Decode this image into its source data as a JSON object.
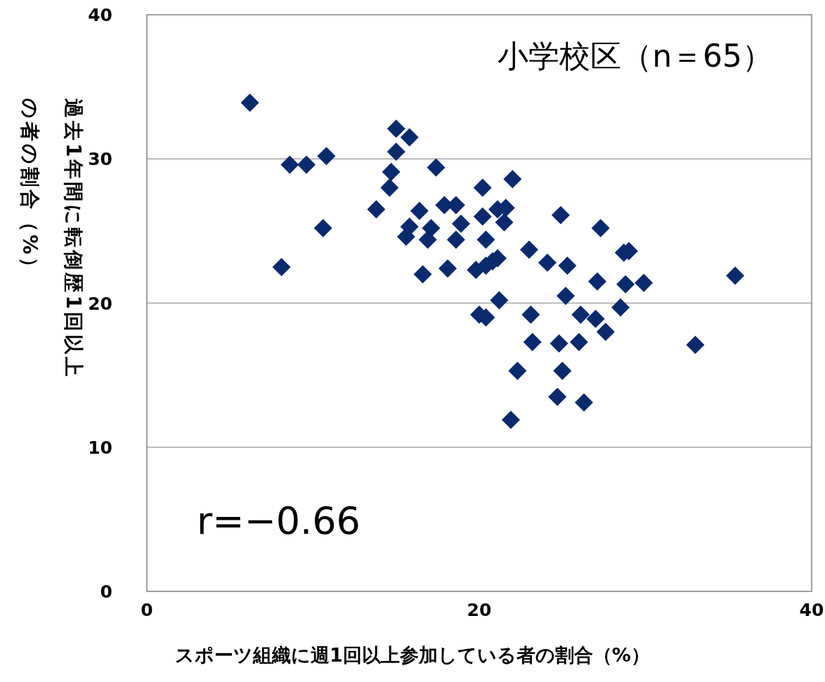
{
  "chart_data": {
    "type": "scatter",
    "xlabel": "スポーツ組織に週1回以上参加している者の割合（%）",
    "ylabel": "過去1年間に転倒歴1回以上の者の割合（%）",
    "annotations": [
      "小学校区（n＝65）",
      "r=−0.66"
    ],
    "xlim": [
      0,
      40
    ],
    "xticks": [
      0,
      20,
      40
    ],
    "ylim": [
      0,
      40
    ],
    "yticks": [
      0,
      10,
      20,
      30,
      40
    ],
    "grid": "y",
    "marker": "diamond",
    "series": [
      {
        "color": "#0a2a6e",
        "x": [
          6.2,
          8.6,
          9.6,
          10.8,
          10.6,
          8.1,
          13.8,
          15.0,
          15.8,
          15.0,
          14.7,
          14.6,
          17.4,
          16.4,
          15.8,
          15.6,
          16.9,
          17.1,
          17.9,
          18.6,
          18.9,
          18.6,
          16.6,
          18.1,
          20.2,
          20.2,
          22.0,
          21.1,
          21.6,
          21.5,
          20.4,
          19.8,
          20.4,
          21.1,
          20.0,
          20.4,
          21.2,
          23.0,
          24.1,
          24.9,
          27.3,
          25.3,
          28.7,
          29.0,
          35.4,
          27.1,
          28.8,
          29.9,
          25.2,
          23.1,
          26.1,
          27.0,
          27.6,
          28.5,
          23.2,
          24.8,
          26.0,
          33.0,
          22.3,
          25.0,
          24.7,
          26.3,
          21.9,
          20.8
        ],
        "values": [
          33.9,
          29.6,
          29.6,
          30.2,
          25.2,
          22.5,
          26.5,
          32.1,
          31.5,
          30.5,
          29.1,
          28.0,
          29.4,
          26.4,
          25.3,
          24.6,
          24.4,
          25.2,
          26.8,
          26.8,
          25.5,
          24.4,
          22.0,
          22.4,
          28.0,
          26.0,
          28.6,
          26.5,
          26.6,
          25.6,
          24.4,
          22.3,
          22.6,
          23.1,
          19.2,
          19.0,
          20.2,
          23.7,
          22.8,
          26.1,
          25.2,
          22.6,
          23.5,
          23.6,
          21.9,
          21.5,
          21.3,
          21.4,
          20.5,
          19.2,
          19.2,
          18.9,
          18.0,
          19.7,
          17.3,
          17.2,
          17.3,
          17.1,
          15.3,
          15.3,
          13.5,
          13.1,
          11.9,
          22.9
        ]
      }
    ]
  }
}
